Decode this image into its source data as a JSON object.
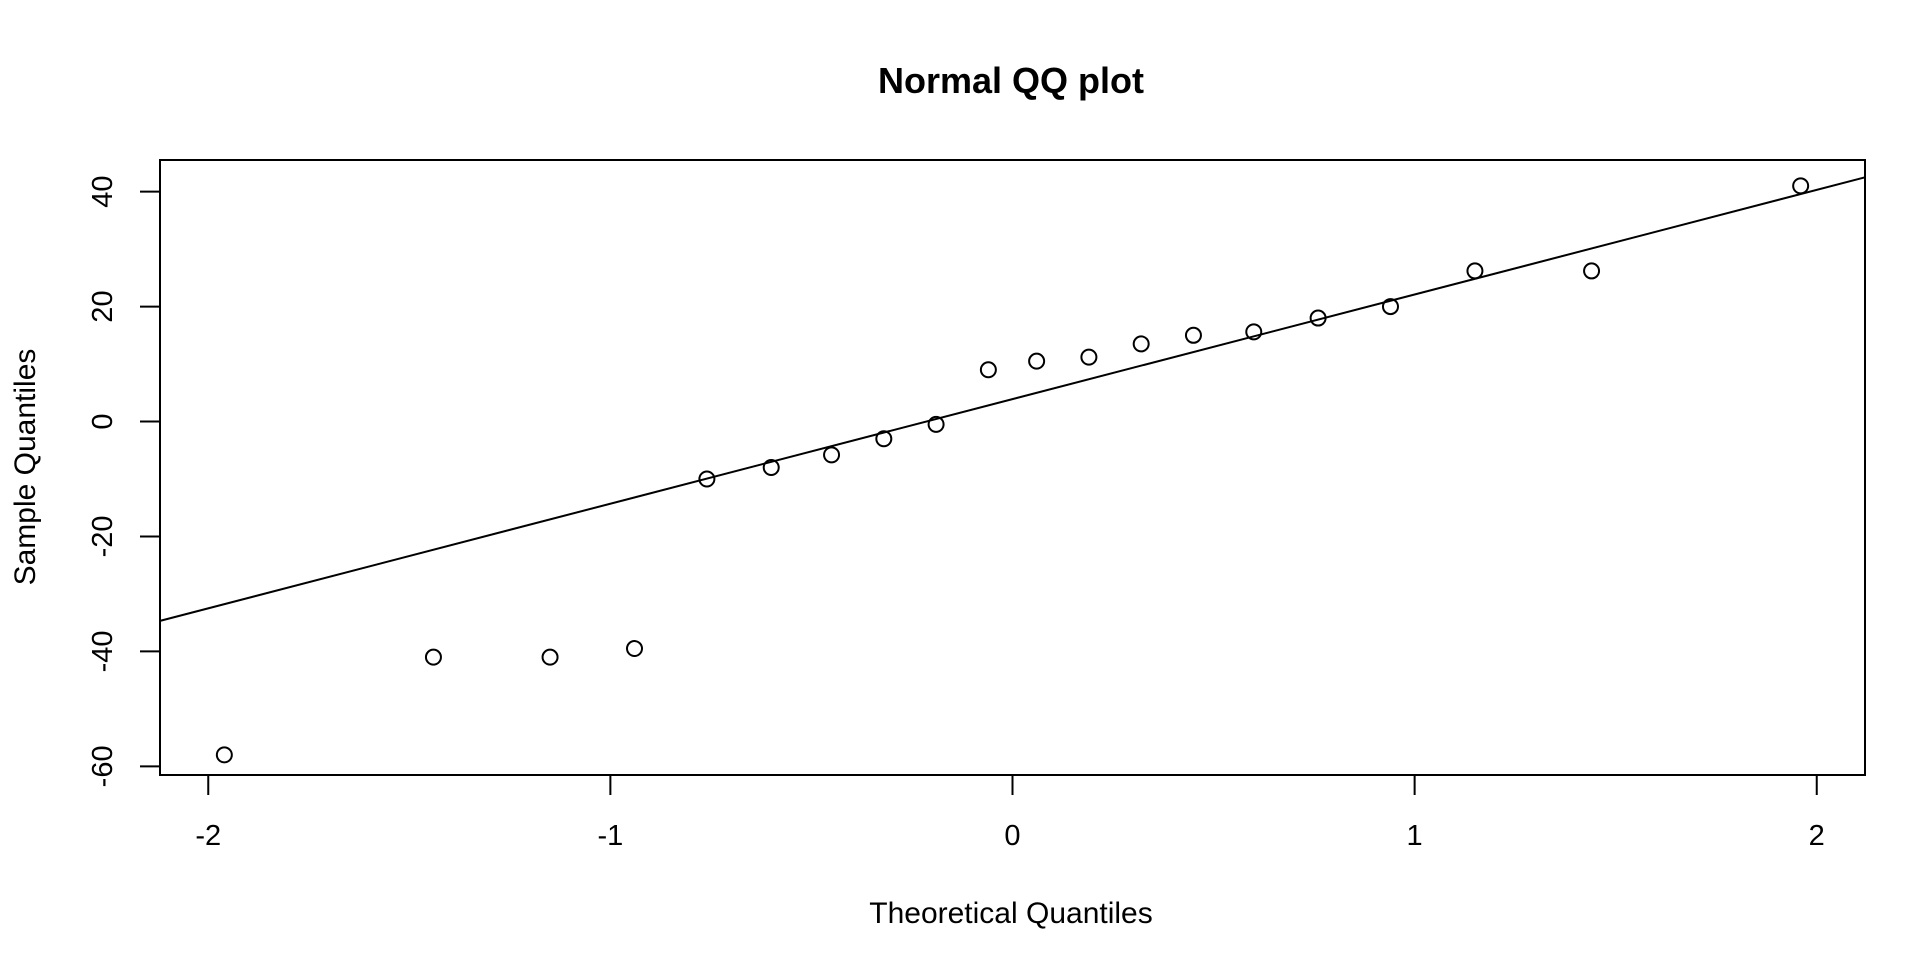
{
  "chart_data": {
    "type": "scatter",
    "title": "Normal QQ plot",
    "xlabel": "Theoretical Quantiles",
    "ylabel": "Sample Quantiles",
    "xlim": [
      -2.12,
      2.12
    ],
    "ylim": [
      -61.5,
      45.5
    ],
    "x_ticks": [
      -2,
      -1,
      0,
      1,
      2
    ],
    "x_tick_labels": [
      "-2",
      "-1",
      "0",
      "1",
      "2"
    ],
    "y_ticks": [
      -60,
      -40,
      -20,
      0,
      20,
      40
    ],
    "y_tick_labels": [
      "-60",
      "-40",
      "-20",
      "0",
      "20",
      "40"
    ],
    "grid": false,
    "points": [
      {
        "x": -1.96,
        "y": -58
      },
      {
        "x": -1.44,
        "y": -41
      },
      {
        "x": -1.15,
        "y": -41
      },
      {
        "x": -0.94,
        "y": -39.5
      },
      {
        "x": -0.76,
        "y": -10
      },
      {
        "x": -0.6,
        "y": -8
      },
      {
        "x": -0.45,
        "y": -5.8
      },
      {
        "x": -0.32,
        "y": -3
      },
      {
        "x": -0.19,
        "y": -0.5
      },
      {
        "x": -0.06,
        "y": 9
      },
      {
        "x": 0.06,
        "y": 10.5
      },
      {
        "x": 0.19,
        "y": 11.2
      },
      {
        "x": 0.32,
        "y": 13.5
      },
      {
        "x": 0.45,
        "y": 15
      },
      {
        "x": 0.6,
        "y": 15.6
      },
      {
        "x": 0.76,
        "y": 18
      },
      {
        "x": 0.94,
        "y": 20
      },
      {
        "x": 1.15,
        "y": 26.2
      },
      {
        "x": 1.44,
        "y": 26.2
      },
      {
        "x": 1.96,
        "y": 41
      }
    ],
    "reference_line": {
      "intercept": 3.9,
      "slope": 18.2
    }
  }
}
